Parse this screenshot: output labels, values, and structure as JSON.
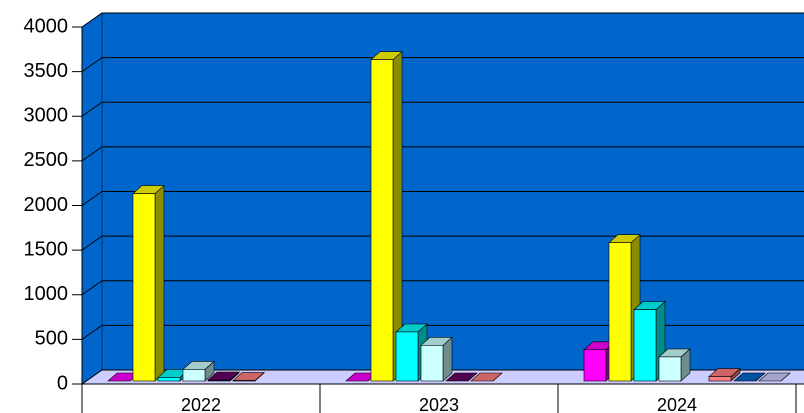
{
  "chart_data": {
    "type": "bar3d",
    "categories": [
      "2022",
      "2023",
      "2024"
    ],
    "series": [
      {
        "color": "#ff00ff",
        "values": [
          0,
          0,
          350
        ]
      },
      {
        "color": "#ffff00",
        "values": [
          2100,
          3600,
          1550
        ]
      },
      {
        "color": "#00ffff",
        "values": [
          40,
          550,
          800
        ]
      },
      {
        "color": "#ccffff",
        "values": [
          130,
          400,
          270
        ]
      },
      {
        "color": "#660066",
        "values": [
          10,
          0,
          null
        ]
      },
      {
        "color": "#ff8080",
        "values": [
          5,
          0,
          50
        ]
      },
      {
        "color": "#0066cc",
        "values": [
          null,
          null,
          0
        ]
      },
      {
        "color": "#ccccff",
        "values": [
          null,
          null,
          0
        ]
      }
    ],
    "ylim": [
      0,
      4000
    ],
    "yticks": [
      0,
      500,
      1000,
      1500,
      2000,
      2500,
      3000,
      3500,
      4000
    ],
    "grid": true
  }
}
